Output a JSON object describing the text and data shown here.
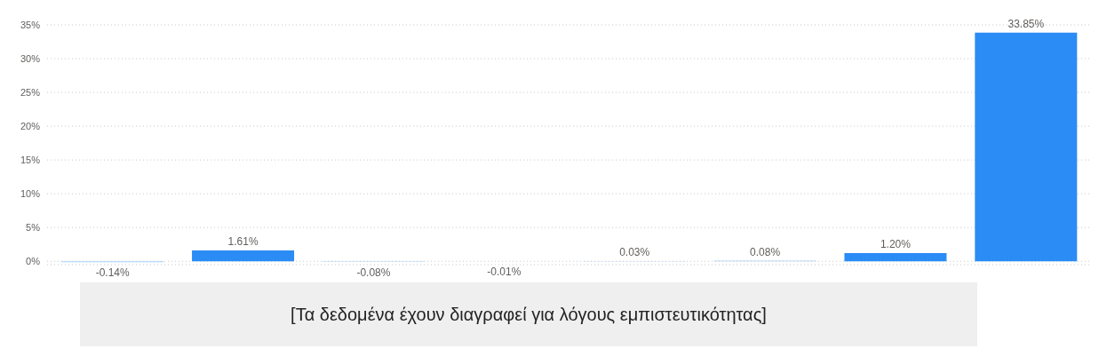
{
  "chart_data": {
    "type": "bar",
    "categories": [
      null,
      null,
      null,
      null,
      null,
      null,
      null,
      null
    ],
    "values": [
      -0.14,
      1.61,
      -0.08,
      -0.01,
      0.03,
      0.08,
      1.2,
      33.85
    ],
    "value_labels": [
      "-0.14%",
      "1.61%",
      "-0.08%",
      "-0.01%",
      "0.03%",
      "0.08%",
      "1.20%",
      "33.85%"
    ],
    "colors": [
      "#a9d0f7",
      "#2b8cf5",
      "#a9d0f7",
      "#a9d0f7",
      "#a9d0f7",
      "#a9d0f7",
      "#2b8cf5",
      "#2b8cf5"
    ],
    "ylim": [
      -0.5,
      35
    ],
    "yticks": [
      {
        "value": 0,
        "label": "0%"
      },
      {
        "value": 5,
        "label": "5%"
      },
      {
        "value": 10,
        "label": "10%"
      },
      {
        "value": 15,
        "label": "15%"
      },
      {
        "value": 20,
        "label": "20%"
      },
      {
        "value": 25,
        "label": "25%"
      },
      {
        "value": 30,
        "label": "30%"
      },
      {
        "value": 35,
        "label": "35%"
      }
    ],
    "grid": "y",
    "annotations": [
      "[Τα δεδομένα έχουν διαγραφεί για λόγους εμπιστευτικότητας]"
    ]
  }
}
